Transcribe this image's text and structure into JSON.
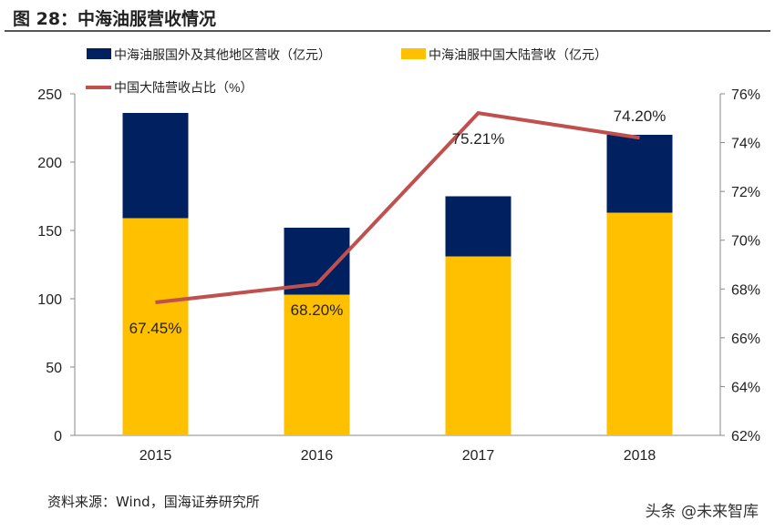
{
  "header": {
    "title": "图 28：中海油服营收情况"
  },
  "footer": {
    "source": "资料来源：Wind，国海证券研究所",
    "watermark": "头条 @未来智库"
  },
  "chart_data": {
    "type": "bar",
    "stacked": true,
    "categories": [
      "2015",
      "2016",
      "2017",
      "2018"
    ],
    "series": [
      {
        "name": "中海油服中国大陆营收（亿元）",
        "values": [
          159,
          103,
          131,
          163
        ],
        "color": "#FFC000",
        "axis": "left"
      },
      {
        "name": "中海油服国外及其他地区营收（亿元）",
        "values": [
          77,
          49,
          44,
          57
        ],
        "color": "#002060",
        "axis": "left"
      },
      {
        "name": "中国大陆营收占比（%）",
        "type": "line",
        "values": [
          67.45,
          68.2,
          75.21,
          74.2
        ],
        "labels": [
          "67.45%",
          "68.20%",
          "75.21%",
          "74.20%"
        ],
        "color": "#C0504D",
        "axis": "right"
      }
    ],
    "legend_order": [
      1,
      0,
      2
    ],
    "legend_placement": "top",
    "ylim": [
      0,
      250
    ],
    "yticks": [
      "0",
      "50",
      "100",
      "150",
      "200",
      "250"
    ],
    "y2lim": [
      62,
      76
    ],
    "y2ticks": [
      "62%",
      "64%",
      "66%",
      "68%",
      "70%",
      "72%",
      "74%",
      "76%"
    ],
    "grid": false
  }
}
